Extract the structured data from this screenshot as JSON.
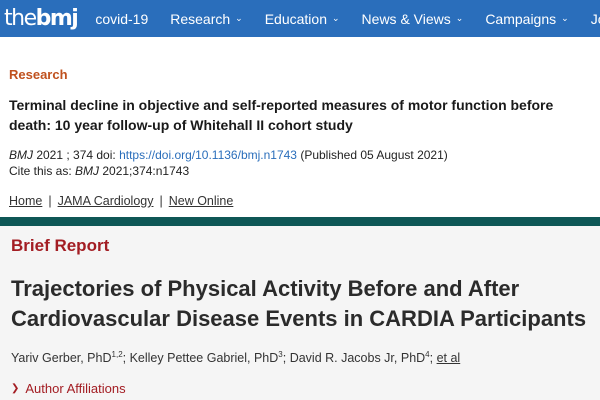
{
  "nav": {
    "logo_the": "the",
    "logo_bmj": "bmj",
    "items": [
      {
        "label": "covid-19",
        "dropdown": false
      },
      {
        "label": "Research",
        "dropdown": true
      },
      {
        "label": "Education",
        "dropdown": true
      },
      {
        "label": "News & Views",
        "dropdown": true
      },
      {
        "label": "Campaigns",
        "dropdown": true
      },
      {
        "label": "Jobs",
        "dropdown": true
      }
    ],
    "chevron": "⌄",
    "background_color": "#2a6ebb"
  },
  "bmj_article": {
    "type": "Research",
    "title": "Terminal decline in objective and self-reported measures of motor function before death: 10 year follow-up of Whitehall II cohort study",
    "journal": "BMJ",
    "year_vol": " 2021 ; 374  doi: ",
    "doi_link": "https://doi.org/10.1136/bmj.n1743",
    "published": " (Published 05 August 2021)",
    "cite_prefix": "Cite this as: ",
    "cite_journal": "BMJ",
    "cite_ref": "  2021;374:n1743"
  },
  "breadcrumbs": {
    "items": [
      "Home",
      "JAMA Cardiology",
      "New Online"
    ],
    "separator": "|"
  },
  "jama_article": {
    "type": "Brief Report",
    "title": "Trajectories of Physical Activity Before and After Cardiovascular Disease Events in CARDIA Participants",
    "authors": [
      {
        "name": "Yariv Gerber, PhD",
        "sup": "1,2",
        "sep": "; "
      },
      {
        "name": "Kelley Pettee Gabriel, PhD",
        "sup": "3",
        "sep": "; "
      },
      {
        "name": "David R. Jacobs Jr, PhD",
        "sup": "4",
        "sep": "; "
      }
    ],
    "et_al": "et al",
    "affiliations_label": "Author Affiliations",
    "affiliations_chevron": "❯",
    "accent_color": "#a31d23"
  }
}
